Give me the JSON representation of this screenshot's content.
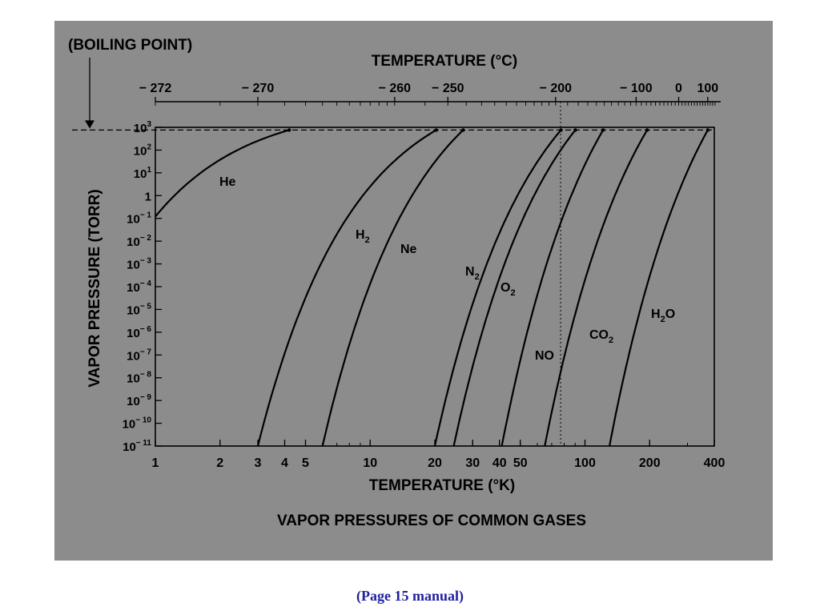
{
  "caption": "(Page 15 manual)",
  "colors": {
    "figure_background": "#8c8c8c",
    "ink": "#000000",
    "caption": "#1f1fa0"
  },
  "chart_data": {
    "type": "line",
    "title": "VAPOR PRESSURES OF COMMON GASES",
    "xlabel": "TEMPERATURE (°K)",
    "ylabel": "VAPOR PRESSURE (TORR)",
    "x_scale": "log",
    "y_scale": "log",
    "xlim": [
      1,
      400
    ],
    "ylim": [
      1e-11,
      1000
    ],
    "grid": false,
    "x_ticks": [
      {
        "value": 1,
        "label": "1"
      },
      {
        "value": 2,
        "label": "2"
      },
      {
        "value": 3,
        "label": "3"
      },
      {
        "value": 4,
        "label": "4"
      },
      {
        "value": 5,
        "label": "5"
      },
      {
        "value": 10,
        "label": "10"
      },
      {
        "value": 20,
        "label": "20"
      },
      {
        "value": 30,
        "label": "30"
      },
      {
        "value": 40,
        "label": "40"
      },
      {
        "value": 50,
        "label": "50"
      },
      {
        "value": 100,
        "label": "100"
      },
      {
        "value": 200,
        "label": "200"
      },
      {
        "value": 400,
        "label": "400"
      }
    ],
    "y_ticks": [
      {
        "exp": 3,
        "base": "10",
        "sup": "3"
      },
      {
        "exp": 2,
        "base": "10",
        "sup": "2"
      },
      {
        "exp": 1,
        "base": "10",
        "sup": "1"
      },
      {
        "exp": 0,
        "base": "1",
        "sup": ""
      },
      {
        "exp": -1,
        "base": "10",
        "sup": "− 1"
      },
      {
        "exp": -2,
        "base": "10",
        "sup": "− 2"
      },
      {
        "exp": -3,
        "base": "10",
        "sup": "− 3"
      },
      {
        "exp": -4,
        "base": "10",
        "sup": "− 4"
      },
      {
        "exp": -5,
        "base": "10",
        "sup": "− 5"
      },
      {
        "exp": -6,
        "base": "10",
        "sup": "− 6"
      },
      {
        "exp": -7,
        "base": "10",
        "sup": "− 7"
      },
      {
        "exp": -8,
        "base": "10",
        "sup": "− 8"
      },
      {
        "exp": -9,
        "base": "10",
        "sup": "− 9"
      },
      {
        "exp": -10,
        "base": "10",
        "sup": "− 10"
      },
      {
        "exp": -11,
        "base": "10",
        "sup": "− 11"
      }
    ],
    "secondary_x_axis": {
      "label": "TEMPERATURE (°C)",
      "offset_kelvin": 273,
      "ticks": [
        {
          "celsius": -272,
          "label": "− 272"
        },
        {
          "celsius": -270,
          "label": "− 270"
        },
        {
          "celsius": -260,
          "label": "− 260"
        },
        {
          "celsius": -250,
          "label": "− 250"
        },
        {
          "celsius": -200,
          "label": "− 200"
        },
        {
          "celsius": -100,
          "label": "− 100"
        },
        {
          "celsius": 0,
          "label": "0"
        },
        {
          "celsius": 100,
          "label": "100"
        }
      ]
    },
    "boiling_point": {
      "label": "(BOILING POINT)",
      "pressure_torr": 760
    },
    "reference_temperature_k": 77,
    "series": [
      {
        "name": "He",
        "label_base": "He",
        "label_sub": "",
        "T_low": 1.0,
        "T_high": 4.2,
        "p_low": 0.12,
        "p_high": 760
      },
      {
        "name": "H2",
        "label_base": "H",
        "label_sub": "2",
        "T_low": 3.0,
        "T_high": 20.3,
        "p_low": 1e-11,
        "p_high": 760
      },
      {
        "name": "Ne",
        "label_base": "Ne",
        "label_sub": "",
        "T_low": 6.0,
        "T_high": 27.1,
        "p_low": 1e-11,
        "p_high": 760
      },
      {
        "name": "N2",
        "label_base": "N",
        "label_sub": "2",
        "T_low": 20.0,
        "T_high": 77.3,
        "p_low": 1e-11,
        "p_high": 760
      },
      {
        "name": "O2",
        "label_base": "O",
        "label_sub": "2",
        "T_low": 24.5,
        "T_high": 90.2,
        "p_low": 1e-11,
        "p_high": 760
      },
      {
        "name": "NO",
        "label_base": "NO",
        "label_sub": "",
        "T_low": 41.0,
        "T_high": 121.4,
        "p_low": 1e-11,
        "p_high": 760
      },
      {
        "name": "CO2",
        "label_base": "CO",
        "label_sub": "2",
        "T_low": 65.0,
        "T_high": 194.7,
        "p_low": 1e-11,
        "p_high": 760
      },
      {
        "name": "H2O",
        "label_base": "H",
        "label_sub": "2",
        "label_tail": "O",
        "T_low": 130.0,
        "T_high": 373.0,
        "p_low": 1e-11,
        "p_high": 760
      }
    ]
  }
}
